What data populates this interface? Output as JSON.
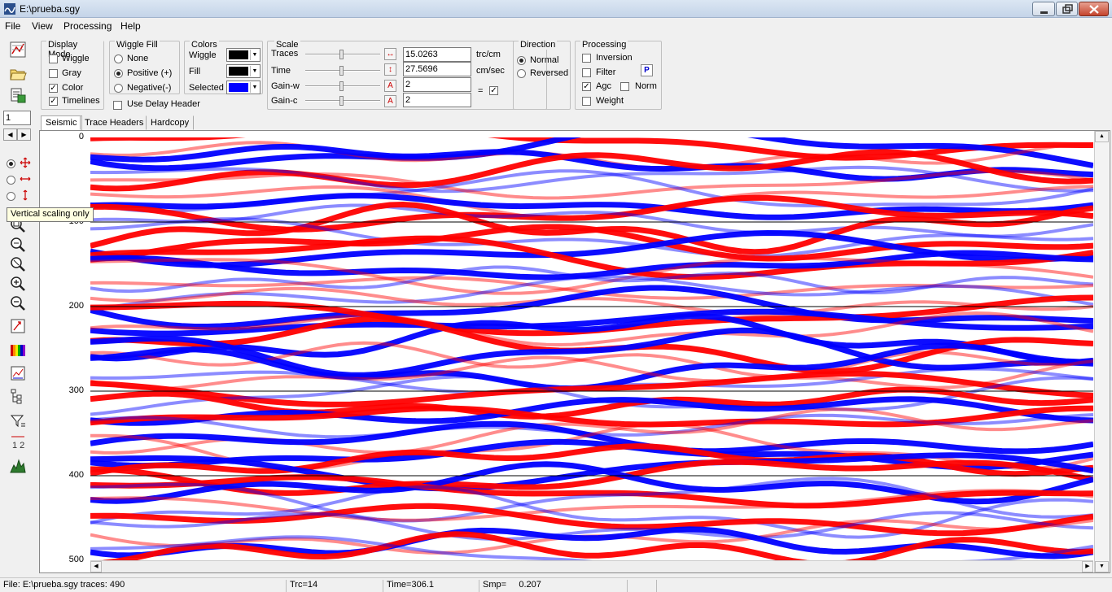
{
  "window": {
    "title": "E:\\prueba.sgy"
  },
  "menu": [
    "File",
    "View",
    "Processing",
    "Help"
  ],
  "left_toolbar": {
    "trace_number_value": "1",
    "tooltip": "Vertical scaling only"
  },
  "display_mode": {
    "label": "Display Mode",
    "items": [
      {
        "label": "Wiggle",
        "checked": false
      },
      {
        "label": "Gray",
        "checked": false
      },
      {
        "label": "Color",
        "checked": true
      },
      {
        "label": "Timelines",
        "checked": true
      }
    ]
  },
  "wiggle_fill": {
    "label": "Wiggle Fill",
    "options": [
      {
        "label": "None",
        "selected": false
      },
      {
        "label": "Positive (+)",
        "selected": true
      },
      {
        "label": "Negative(-)",
        "selected": false
      }
    ],
    "use_delay_header": {
      "label": "Use Delay  Header",
      "checked": false
    }
  },
  "colors": {
    "label": "Colors",
    "rows": [
      {
        "label": "Wiggle",
        "color": "#000000"
      },
      {
        "label": "Fill",
        "color": "#000000"
      },
      {
        "label": "Selected",
        "color": "#0000ff"
      }
    ]
  },
  "scale": {
    "label": "Scale",
    "rows": [
      {
        "label": "Traces",
        "value": "15.0263",
        "unit": "trc/cm",
        "button": "↔"
      },
      {
        "label": "Time",
        "value": "27.5696",
        "unit": "cm/sec",
        "button": "↕"
      },
      {
        "label": "Gain-w",
        "value": "2",
        "unit": "",
        "button": "A"
      },
      {
        "label": "Gain-c",
        "value": "2",
        "unit": "",
        "button": "A"
      }
    ],
    "equal_label": "=",
    "equal_checked": true
  },
  "direction": {
    "label": "Direction",
    "options": [
      {
        "label": "Normal",
        "selected": true
      },
      {
        "label": "Reversed",
        "selected": false
      }
    ]
  },
  "processing": {
    "label": "Processing",
    "items": [
      {
        "label": "Inversion",
        "checked": false
      },
      {
        "label": "Filter",
        "checked": false
      },
      {
        "label": "Agc",
        "checked": true
      },
      {
        "label": "Norm",
        "checked": false
      },
      {
        "label": "Weight",
        "checked": false
      }
    ],
    "p_button": "P"
  },
  "tabs": [
    {
      "label": "Seismic",
      "active": true
    },
    {
      "label": "Trace Headers",
      "active": false
    },
    {
      "label": "Hardcopy",
      "active": false
    }
  ],
  "time_axis": {
    "ticks": [
      "0",
      "100",
      "200",
      "300",
      "400",
      "500"
    ],
    "timelines": [
      100,
      200,
      300,
      400
    ],
    "range": [
      0,
      500
    ]
  },
  "seismic": {
    "traces": 490,
    "positive_color": "#ff0000",
    "negative_color": "#0000ff"
  },
  "status": {
    "file": "File: E:\\prueba.sgy traces: 490",
    "trace": "Trc=14",
    "time": "Time=306.1",
    "sample": "Smp=     0.207"
  }
}
